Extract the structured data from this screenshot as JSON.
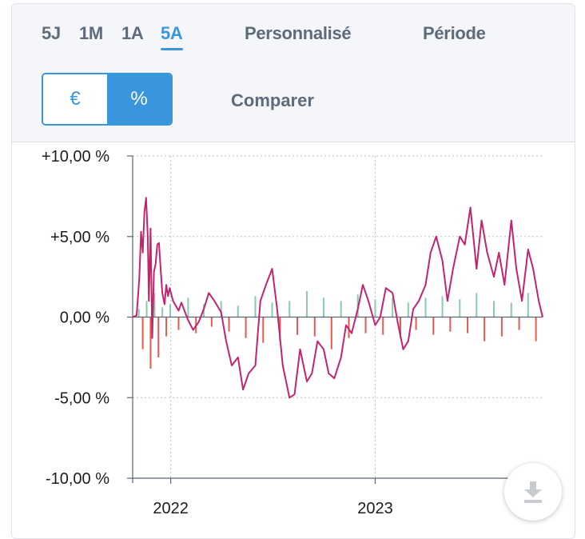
{
  "ranges": [
    "5J",
    "1M",
    "1A",
    "5A"
  ],
  "active_range": "5A",
  "custom_label": "Personnalisé",
  "period_label": "Période",
  "toggle": {
    "euro": "€",
    "percent": "%"
  },
  "compare_label": "Comparer",
  "download_icon": "download-icon",
  "colors": {
    "accent": "#3a96dc",
    "line": "#c2246f",
    "pos_bar": "#8cc9ae",
    "neg_bar": "#e35b4e",
    "grid": "#b9bec4"
  },
  "chart_data": {
    "type": "line",
    "title": "",
    "xlabel": "",
    "ylabel": "",
    "ylim": [
      -10,
      10
    ],
    "yticks": [
      10,
      5,
      0,
      -5,
      -10
    ],
    "ytick_labels": [
      "+10,00 %",
      "+5,00 %",
      "0,00 %",
      "-5,00 %",
      "-10,00 %"
    ],
    "xlim": [
      "2021-10-25",
      "2023-10-27"
    ],
    "xticks": [
      "2022-01-01",
      "2023-01-01"
    ],
    "xtick_labels": [
      "2022",
      "2023"
    ],
    "grid": true,
    "series": [
      {
        "role": "cumulative-performance-line",
        "x": [
          "2021-10-25",
          "2021-11-01",
          "2021-11-03",
          "2021-11-06",
          "2021-11-09",
          "2021-11-12",
          "2021-11-15",
          "2021-11-18",
          "2021-11-21",
          "2021-11-23",
          "2021-11-26",
          "2021-11-29",
          "2021-12-02",
          "2021-12-05",
          "2021-12-08",
          "2021-12-11",
          "2021-12-14",
          "2021-12-17",
          "2021-12-21",
          "2021-12-24",
          "2021-12-27",
          "2021-12-30",
          "2022-01-05",
          "2022-01-10",
          "2022-01-15",
          "2022-01-20",
          "2022-02-01",
          "2022-02-10",
          "2022-02-20",
          "2022-03-01",
          "2022-03-10",
          "2022-03-20",
          "2022-04-01",
          "2022-04-10",
          "2022-04-20",
          "2022-05-01",
          "2022-05-10",
          "2022-05-20",
          "2022-06-01",
          "2022-06-10",
          "2022-06-20",
          "2022-07-01",
          "2022-07-10",
          "2022-07-20",
          "2022-08-01",
          "2022-08-10",
          "2022-08-20",
          "2022-09-01",
          "2022-09-10",
          "2022-09-20",
          "2022-10-01",
          "2022-10-10",
          "2022-10-20",
          "2022-11-01",
          "2022-11-10",
          "2022-11-20",
          "2022-12-01",
          "2022-12-10",
          "2022-12-20",
          "2023-01-01",
          "2023-01-10",
          "2023-01-20",
          "2023-02-01",
          "2023-02-10",
          "2023-02-20",
          "2023-03-01",
          "2023-03-10",
          "2023-03-20",
          "2023-04-01",
          "2023-04-10",
          "2023-04-20",
          "2023-05-01",
          "2023-05-10",
          "2023-05-20",
          "2023-06-01",
          "2023-06-10",
          "2023-06-20",
          "2023-07-01",
          "2023-07-10",
          "2023-07-20",
          "2023-08-01",
          "2023-08-10",
          "2023-08-20",
          "2023-09-01",
          "2023-09-10",
          "2023-09-20",
          "2023-10-01",
          "2023-10-10",
          "2023-10-20",
          "2023-10-27"
        ],
        "y": [
          0,
          0.1,
          1.0,
          2.5,
          5.3,
          4.0,
          6.5,
          7.4,
          5.0,
          1.0,
          5.5,
          -1.3,
          2.8,
          3.3,
          4.5,
          4.6,
          3.0,
          1.5,
          0.8,
          2.0,
          1.3,
          1.8,
          1.0,
          0.7,
          0.4,
          0.9,
          -0.2,
          -0.8,
          -0.3,
          0.5,
          1.5,
          1.0,
          0.3,
          -1.5,
          -3.0,
          -2.5,
          -4.5,
          -3.5,
          -3.0,
          1.0,
          2.0,
          3.0,
          0.5,
          -3.0,
          -5.0,
          -4.8,
          -2.0,
          -4.0,
          -3.5,
          -1.5,
          -2.0,
          -3.5,
          -3.8,
          -2.5,
          -0.5,
          -1.0,
          0.5,
          2.0,
          1.0,
          -0.5,
          0.0,
          1.8,
          1.5,
          -0.3,
          -2.0,
          -1.5,
          0.5,
          1.0,
          2.0,
          4.0,
          5.0,
          3.5,
          1.0,
          3.0,
          5.0,
          4.5,
          6.8,
          3.0,
          6.0,
          4.0,
          2.5,
          4.0,
          2.0,
          6.0,
          3.0,
          1.0,
          4.2,
          3.0,
          1.0,
          0.0
        ]
      },
      {
        "role": "daily-variation-bars",
        "x": [
          "2021-11-05",
          "2021-11-12",
          "2021-11-19",
          "2021-11-26",
          "2021-12-03",
          "2021-12-10",
          "2021-12-17",
          "2021-12-24",
          "2021-12-31",
          "2022-01-15",
          "2022-02-01",
          "2022-02-15",
          "2022-03-01",
          "2022-03-15",
          "2022-04-01",
          "2022-04-15",
          "2022-05-01",
          "2022-05-15",
          "2022-06-01",
          "2022-06-15",
          "2022-07-01",
          "2022-07-15",
          "2022-08-01",
          "2022-08-15",
          "2022-09-01",
          "2022-09-15",
          "2022-10-01",
          "2022-10-15",
          "2022-11-01",
          "2022-11-15",
          "2022-12-01",
          "2022-12-15",
          "2023-01-01",
          "2023-01-15",
          "2023-02-01",
          "2023-02-15",
          "2023-03-01",
          "2023-03-15",
          "2023-04-01",
          "2023-04-15",
          "2023-05-01",
          "2023-05-15",
          "2023-06-01",
          "2023-06-15",
          "2023-07-01",
          "2023-07-15",
          "2023-08-01",
          "2023-08-15",
          "2023-09-01",
          "2023-09-15",
          "2023-10-01",
          "2023-10-15"
        ],
        "y": [
          0.5,
          -2.0,
          1.0,
          -3.2,
          1.5,
          -2.5,
          0.6,
          -1.2,
          0.8,
          -0.8,
          1.2,
          -1.0,
          0.8,
          -0.6,
          1.0,
          -0.9,
          0.7,
          -1.3,
          1.3,
          -1.6,
          0.9,
          -1.5,
          1.0,
          -1.1,
          1.6,
          -1.2,
          1.2,
          -2.0,
          1.0,
          -1.3,
          1.4,
          -1.0,
          1.1,
          -1.1,
          1.2,
          -1.3,
          0.9,
          -0.8,
          1.2,
          -1.1,
          1.3,
          -0.9,
          1.1,
          -1.0,
          1.5,
          -1.5,
          1.0,
          -1.2,
          0.9,
          -0.8,
          1.5,
          -1.5
        ]
      }
    ]
  }
}
